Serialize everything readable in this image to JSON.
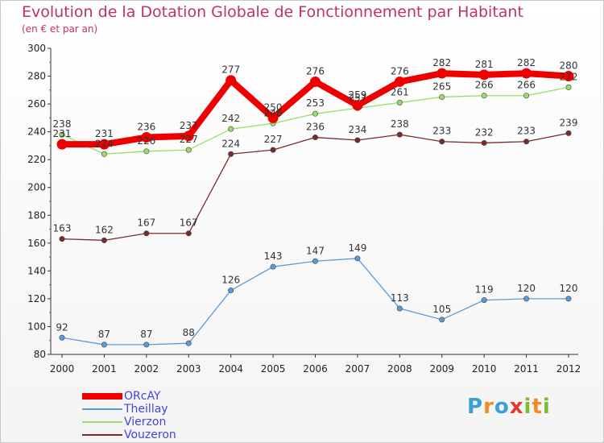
{
  "header": {
    "title": "Evolution de la Dotation Globale de Fonctionnement par Habitant",
    "subtitle": "(en € et par an)"
  },
  "logo": {
    "letters": [
      {
        "ch": "P",
        "color": "#3aa0d8"
      },
      {
        "ch": "r",
        "color": "#f28c1e"
      },
      {
        "ch": "o",
        "color": "#3aa0d8"
      },
      {
        "ch": "x",
        "color": "#e23b2e"
      },
      {
        "ch": "i",
        "color": "#7dbb2f"
      },
      {
        "ch": "t",
        "color": "#f28c1e"
      },
      {
        "ch": "i",
        "color": "#7dbb2f"
      }
    ]
  },
  "chart_data": {
    "type": "line",
    "title": "Evolution de la Dotation Globale de Fonctionnement par Habitant",
    "subtitle": "(en € et par an)",
    "x": [
      "2000",
      "2001",
      "2002",
      "2003",
      "2004",
      "2005",
      "2006",
      "2007",
      "2008",
      "2009",
      "2010",
      "2011",
      "2012"
    ],
    "ylim": [
      80,
      300
    ],
    "yticks": [
      80,
      100,
      120,
      140,
      160,
      180,
      200,
      220,
      240,
      260,
      280,
      300
    ],
    "grid": false,
    "legend_position": "bottom-left",
    "series": [
      {
        "name": "ORcAY",
        "color": "#ee0000",
        "values": [
          231,
          231,
          236,
          237,
          277,
          250,
          276,
          259,
          276,
          282,
          281,
          282,
          280
        ],
        "labels": [
          "231",
          "231",
          "236",
          "237",
          "277",
          "250",
          "276",
          "259",
          "276",
          "282",
          "281",
          "282",
          "280"
        ]
      },
      {
        "name": "Theillay",
        "color": "#5b9bd5",
        "values": [
          92,
          87,
          87,
          88,
          126,
          143,
          147,
          149,
          113,
          105,
          119,
          120,
          120
        ],
        "labels": [
          "92",
          "87",
          "87",
          "88",
          "126",
          "143",
          "147",
          "149",
          "113",
          "105",
          "119",
          "120",
          "120"
        ]
      },
      {
        "name": "Vierzon",
        "color": "#99dd66",
        "values": [
          238,
          224,
          226,
          227,
          242,
          246,
          253,
          257,
          261,
          265,
          266,
          266,
          272
        ],
        "labels": [
          "238",
          "224",
          "226",
          "227",
          "242",
          "246",
          "253",
          "257",
          "261",
          "265",
          "266",
          "266",
          "272"
        ]
      },
      {
        "name": "Vouzeron",
        "color": "#7a2a2a",
        "values": [
          163,
          162,
          167,
          167,
          224,
          227,
          236,
          234,
          238,
          233,
          232,
          233,
          239
        ],
        "labels": [
          "163",
          "162",
          "167",
          "167",
          "224",
          "227",
          "236",
          "234",
          "238",
          "233",
          "232",
          "233",
          "239"
        ]
      }
    ]
  }
}
